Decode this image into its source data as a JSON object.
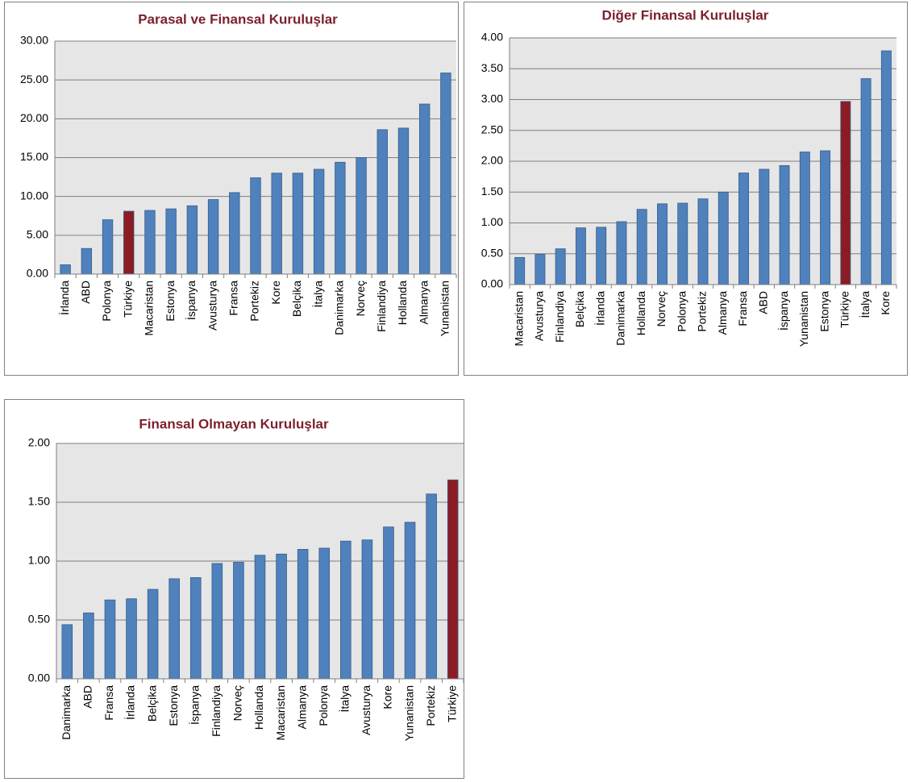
{
  "chart_data": [
    {
      "type": "bar",
      "title": "Parasal ve Finansal Kuruluşlar",
      "categories": [
        "İrlanda",
        "ABD",
        "Polonya",
        "Türkiye",
        "Macaristan",
        "Estonya",
        "İspanya",
        "Avusturya",
        "Fransa",
        "Portekiz",
        "Kore",
        "Belçika",
        "İtalya",
        "Danimarka",
        "Norveç",
        "Finlandiya",
        "Hollanda",
        "Almanya",
        "Yunanistan"
      ],
      "values": [
        1.2,
        3.3,
        7.0,
        8.1,
        8.2,
        8.4,
        8.8,
        9.6,
        10.5,
        12.4,
        13.0,
        13.0,
        13.5,
        14.4,
        15.0,
        18.6,
        18.8,
        21.9,
        25.9
      ],
      "colors": [
        "#4f81bd",
        "#4f81bd",
        "#4f81bd",
        "#8b1c24",
        "#4f81bd",
        "#4f81bd",
        "#4f81bd",
        "#4f81bd",
        "#4f81bd",
        "#4f81bd",
        "#4f81bd",
        "#4f81bd",
        "#4f81bd",
        "#4f81bd",
        "#4f81bd",
        "#4f81bd",
        "#4f81bd",
        "#4f81bd",
        "#4f81bd"
      ],
      "ylim": [
        0,
        30
      ],
      "yticks": [
        {
          "value": 0,
          "label": "0.00"
        },
        {
          "value": 5,
          "label": "5.00"
        },
        {
          "value": 10,
          "label": "10.00"
        },
        {
          "value": 15,
          "label": "15.00"
        },
        {
          "value": 20,
          "label": "20.00"
        },
        {
          "value": 25,
          "label": "25.00"
        },
        {
          "value": 30,
          "label": "30.00"
        }
      ],
      "grid": true
    },
    {
      "type": "bar",
      "title": "Diğer Finansal Kuruluşlar",
      "categories": [
        "Macaristan",
        "Avusturya",
        "Finlandiya",
        "Belçika",
        "İrlanda",
        "Danimarka",
        "Hollanda",
        "Norveç",
        "Polonya",
        "Portekiz",
        "Almanya",
        "Fransa",
        "ABD",
        "İspanya",
        "Yunanistan",
        "Estonya",
        "Türkiye",
        "İtalya",
        "Kore"
      ],
      "values": [
        0.44,
        0.49,
        0.58,
        0.92,
        0.93,
        1.02,
        1.22,
        1.31,
        1.32,
        1.39,
        1.5,
        1.81,
        1.87,
        1.93,
        2.15,
        2.17,
        2.97,
        3.34,
        3.79
      ],
      "colors": [
        "#4f81bd",
        "#4f81bd",
        "#4f81bd",
        "#4f81bd",
        "#4f81bd",
        "#4f81bd",
        "#4f81bd",
        "#4f81bd",
        "#4f81bd",
        "#4f81bd",
        "#4f81bd",
        "#4f81bd",
        "#4f81bd",
        "#4f81bd",
        "#4f81bd",
        "#4f81bd",
        "#8b1c24",
        "#4f81bd",
        "#4f81bd"
      ],
      "ylim": [
        0,
        4
      ],
      "yticks": [
        {
          "value": 0,
          "label": "0.00"
        },
        {
          "value": 0.5,
          "label": "0.50"
        },
        {
          "value": 1,
          "label": "1.00"
        },
        {
          "value": 1.5,
          "label": "1.50"
        },
        {
          "value": 2,
          "label": "2.00"
        },
        {
          "value": 2.5,
          "label": "2.50"
        },
        {
          "value": 3,
          "label": "3.00"
        },
        {
          "value": 3.5,
          "label": "3.50"
        },
        {
          "value": 4,
          "label": "4.00"
        }
      ],
      "grid": true
    },
    {
      "type": "bar",
      "title": "Finansal Olmayan Kuruluşlar",
      "categories": [
        "Danimarka",
        "ABD",
        "Fransa",
        "İrlanda",
        "Belçika",
        "Estonya",
        "İspanya",
        "Finlandiya",
        "Norveç",
        "Hollanda",
        "Macaristan",
        "Almanya",
        "Polonya",
        "İtalya",
        "Avusturya",
        "Kore",
        "Yunanistan",
        "Portekiz",
        "Türkiye"
      ],
      "values": [
        0.46,
        0.56,
        0.67,
        0.68,
        0.76,
        0.85,
        0.86,
        0.98,
        0.99,
        1.05,
        1.06,
        1.1,
        1.11,
        1.17,
        1.18,
        1.29,
        1.33,
        1.57,
        1.69
      ],
      "colors": [
        "#4f81bd",
        "#4f81bd",
        "#4f81bd",
        "#4f81bd",
        "#4f81bd",
        "#4f81bd",
        "#4f81bd",
        "#4f81bd",
        "#4f81bd",
        "#4f81bd",
        "#4f81bd",
        "#4f81bd",
        "#4f81bd",
        "#4f81bd",
        "#4f81bd",
        "#4f81bd",
        "#4f81bd",
        "#4f81bd",
        "#8b1c24"
      ],
      "ylim": [
        0,
        2
      ],
      "yticks": [
        {
          "value": 0,
          "label": "0.00"
        },
        {
          "value": 0.5,
          "label": "0.50"
        },
        {
          "value": 1,
          "label": "1.00"
        },
        {
          "value": 1.5,
          "label": "1.50"
        },
        {
          "value": 2,
          "label": "2.00"
        }
      ],
      "grid": true
    }
  ]
}
